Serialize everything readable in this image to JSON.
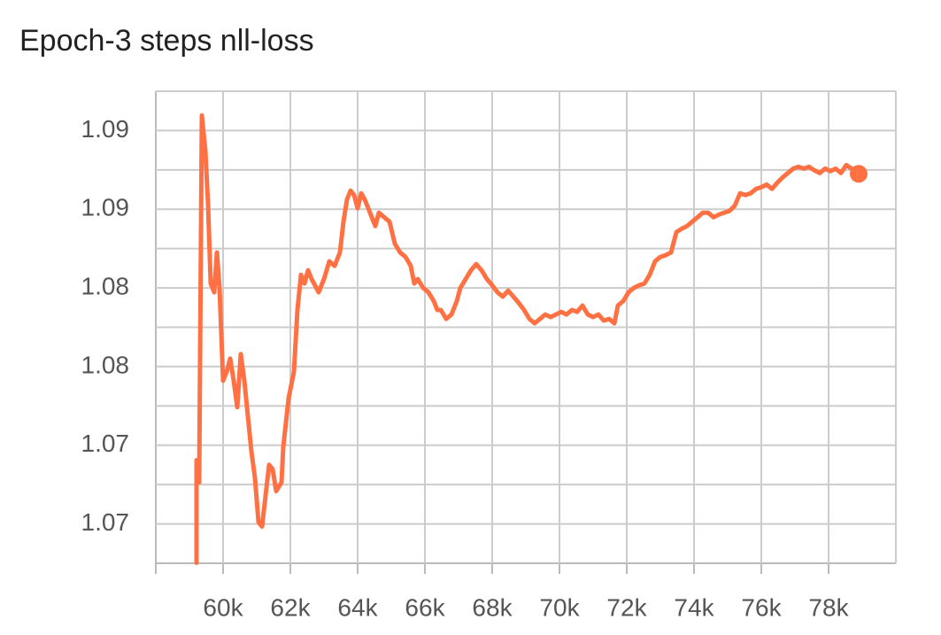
{
  "chart_data": {
    "type": "line",
    "title": "Epoch-3 steps nll-loss",
    "xlim": [
      58000,
      80000
    ],
    "ylim": [
      1.0625,
      1.0925
    ],
    "xticks": [
      {
        "value": 60000,
        "label": "60k"
      },
      {
        "value": 62000,
        "label": "62k"
      },
      {
        "value": 64000,
        "label": "64k"
      },
      {
        "value": 66000,
        "label": "66k"
      },
      {
        "value": 68000,
        "label": "68k"
      },
      {
        "value": 70000,
        "label": "70k"
      },
      {
        "value": 72000,
        "label": "72k"
      },
      {
        "value": 74000,
        "label": "74k"
      },
      {
        "value": 76000,
        "label": "76k"
      },
      {
        "value": 78000,
        "label": "78k"
      }
    ],
    "yticks": [
      {
        "value": 1.09,
        "label": "1.09"
      },
      {
        "value": 1.085,
        "label": "1.09"
      },
      {
        "value": 1.08,
        "label": "1.08"
      },
      {
        "value": 1.075,
        "label": "1.08"
      },
      {
        "value": 1.07,
        "label": "1.07"
      },
      {
        "value": 1.065,
        "label": "1.07"
      }
    ],
    "grid": true,
    "minor_grid": true,
    "series": [
      {
        "color": "#ff7043",
        "x": [
          59211,
          59211,
          59289,
          59368,
          59474,
          59553,
          59632,
          59737,
          59816,
          59895,
          60000,
          60105,
          60211,
          60316,
          60421,
          60526,
          60632,
          60737,
          60842,
          60947,
          61053,
          61158,
          61263,
          61368,
          61474,
          61579,
          61737,
          61789,
          61947,
          62105,
          62211,
          62316,
          62421,
          62526,
          62632,
          62842,
          63000,
          63158,
          63316,
          63474,
          63579,
          63684,
          63789,
          63895,
          64000,
          64105,
          64211,
          64316,
          64421,
          64526,
          64632,
          64789,
          64947,
          65105,
          65263,
          65421,
          65579,
          65684,
          65789,
          65947,
          66105,
          66263,
          66368,
          66474,
          66632,
          66789,
          66947,
          67053,
          67211,
          67368,
          67526,
          67684,
          67842,
          68000,
          68158,
          68316,
          68474,
          68632,
          68789,
          68947,
          69105,
          69263,
          69421,
          69579,
          69737,
          69895,
          70053,
          70211,
          70368,
          70526,
          70684,
          70842,
          71000,
          71158,
          71316,
          71474,
          71632,
          71737,
          71895,
          72053,
          72211,
          72368,
          72526,
          72684,
          72842,
          73000,
          73158,
          73316,
          73474,
          73632,
          73789,
          73947,
          74105,
          74263,
          74421,
          74579,
          74737,
          74895,
          75053,
          75211,
          75368,
          75526,
          75684,
          75842,
          76000,
          76158,
          76316,
          76474,
          76632,
          76789,
          76947,
          77105,
          77263,
          77421,
          77579,
          77737,
          77895,
          78053,
          78211,
          78368,
          78526,
          78684,
          78895
        ],
        "values": [
          1.06253,
          1.06905,
          1.06764,
          1.09096,
          1.08871,
          1.08534,
          1.08028,
          1.07972,
          1.08225,
          1.08,
          1.0741,
          1.07466,
          1.07551,
          1.0741,
          1.07242,
          1.07579,
          1.0741,
          1.07185,
          1.06961,
          1.06792,
          1.06511,
          1.06483,
          1.0668,
          1.06876,
          1.06848,
          1.06708,
          1.06764,
          1.06989,
          1.07298,
          1.07466,
          1.0786,
          1.08084,
          1.08028,
          1.08112,
          1.08056,
          1.07972,
          1.08056,
          1.08169,
          1.0814,
          1.08225,
          1.08421,
          1.08562,
          1.08618,
          1.0859,
          1.08506,
          1.08601,
          1.08562,
          1.08506,
          1.08449,
          1.08393,
          1.08478,
          1.08449,
          1.08421,
          1.08281,
          1.08225,
          1.08197,
          1.0814,
          1.08028,
          1.08056,
          1.08,
          1.07972,
          1.07916,
          1.0786,
          1.0786,
          1.07803,
          1.07831,
          1.07916,
          1.08,
          1.08056,
          1.08112,
          1.08152,
          1.08112,
          1.08056,
          1.08017,
          1.07972,
          1.07944,
          1.07983,
          1.07944,
          1.07904,
          1.0786,
          1.07803,
          1.07775,
          1.07803,
          1.07831,
          1.07815,
          1.07831,
          1.07848,
          1.07831,
          1.0786,
          1.07848,
          1.07888,
          1.07831,
          1.07815,
          1.07831,
          1.07792,
          1.07803,
          1.07775,
          1.07888,
          1.07916,
          1.07972,
          1.08,
          1.08017,
          1.08028,
          1.08084,
          1.08169,
          1.08197,
          1.08208,
          1.08225,
          1.08354,
          1.08376,
          1.08393,
          1.08421,
          1.08449,
          1.08478,
          1.08478,
          1.08449,
          1.08466,
          1.08478,
          1.08489,
          1.08522,
          1.08601,
          1.0859,
          1.08601,
          1.08629,
          1.0864,
          1.08657,
          1.08629,
          1.08668,
          1.08702,
          1.0873,
          1.08758,
          1.0877,
          1.08758,
          1.0877,
          1.08747,
          1.0873,
          1.08758,
          1.08742,
          1.08758,
          1.0873,
          1.08781,
          1.08758,
          1.08725
        ]
      }
    ]
  }
}
